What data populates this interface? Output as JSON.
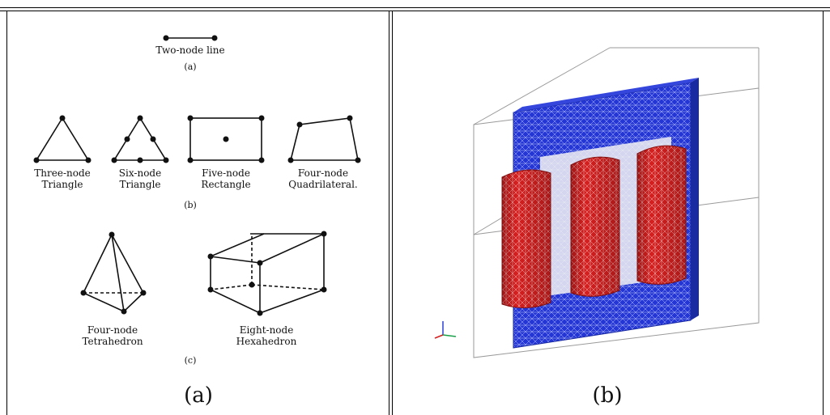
{
  "panel_a": {
    "two_node_label": "Two-node line",
    "sub_a": "(a)",
    "three_node": [
      "Three-node",
      "Triangle"
    ],
    "six_node": [
      "Six-node",
      "Triangle"
    ],
    "five_node": [
      "Five-node",
      "Rectangle"
    ],
    "four_node_quad": [
      "Four-node",
      "Quadrilateral."
    ],
    "sub_b": "(b)",
    "tetra": [
      "Four-node",
      "Tetrahedron"
    ],
    "hexa": [
      "Eight-node",
      "Hexahedron"
    ],
    "sub_c": "(c)",
    "caption": "(a)"
  },
  "panel_b": {
    "caption": "(b)",
    "colors": {
      "yoke": "#2437d6",
      "winding": "#d61f1f",
      "mesh": "#e8e8e8",
      "box": "#9a9a9a"
    }
  }
}
